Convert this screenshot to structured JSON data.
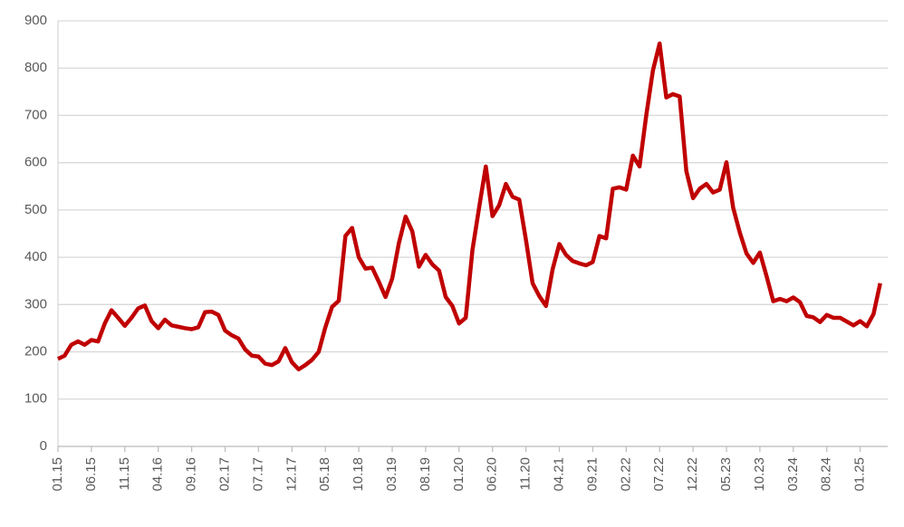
{
  "chart_data": {
    "type": "line",
    "categories": [
      "01.15",
      null,
      null,
      null,
      null,
      "06.15",
      null,
      null,
      null,
      null,
      "11.15",
      null,
      null,
      null,
      null,
      "04.16",
      null,
      null,
      null,
      null,
      "09.16",
      null,
      null,
      null,
      null,
      "02.17",
      null,
      null,
      null,
      null,
      "07.17",
      null,
      null,
      null,
      null,
      "12.17",
      null,
      null,
      null,
      null,
      "05.18",
      null,
      null,
      null,
      null,
      "10.18",
      null,
      null,
      null,
      null,
      "03.19",
      null,
      null,
      null,
      null,
      "08.19",
      null,
      null,
      null,
      null,
      "01.20",
      null,
      null,
      null,
      null,
      "06.20",
      null,
      null,
      null,
      null,
      "11.20",
      null,
      null,
      null,
      null,
      "04.21",
      null,
      null,
      null,
      null,
      "09.21",
      null,
      null,
      null,
      null,
      "02.22",
      null,
      null,
      null,
      null,
      "07.22",
      null,
      null,
      null,
      null,
      "12.22",
      null,
      null,
      null,
      null,
      "05.23",
      null,
      null,
      null,
      null,
      "10.23",
      null,
      null,
      null,
      null,
      "03.24",
      null,
      null,
      null,
      null,
      "08.24",
      null,
      null,
      null,
      null,
      "01.25",
      null,
      null,
      null
    ],
    "series": [
      {
        "color": "#c00000",
        "values": [
          185,
          192,
          215,
          222,
          215,
          225,
          222,
          260,
          288,
          272,
          255,
          272,
          292,
          298,
          265,
          250,
          268,
          256,
          253,
          250,
          248,
          252,
          284,
          285,
          278,
          245,
          235,
          228,
          205,
          192,
          190,
          175,
          172,
          180,
          208,
          178,
          163,
          172,
          183,
          200,
          252,
          295,
          308,
          445,
          462,
          400,
          376,
          378,
          348,
          316,
          355,
          430,
          486,
          455,
          380,
          405,
          385,
          372,
          316,
          297,
          260,
          272,
          415,
          505,
          592,
          487,
          510,
          555,
          528,
          522,
          437,
          345,
          318,
          297,
          375,
          428,
          405,
          392,
          387,
          383,
          390,
          445,
          440,
          545,
          548,
          543,
          615,
          592,
          700,
          795,
          852,
          738,
          745,
          740,
          582,
          525,
          545,
          555,
          537,
          543,
          601,
          505,
          452,
          408,
          388,
          410,
          360,
          307,
          312,
          307,
          315,
          305,
          276,
          273,
          263,
          278,
          272,
          272,
          264,
          256,
          265,
          254,
          280,
          345
        ]
      }
    ],
    "ylim": [
      0,
      900
    ],
    "yticks": [
      0,
      100,
      200,
      300,
      400,
      500,
      600,
      700,
      800,
      900
    ],
    "grid": true
  }
}
